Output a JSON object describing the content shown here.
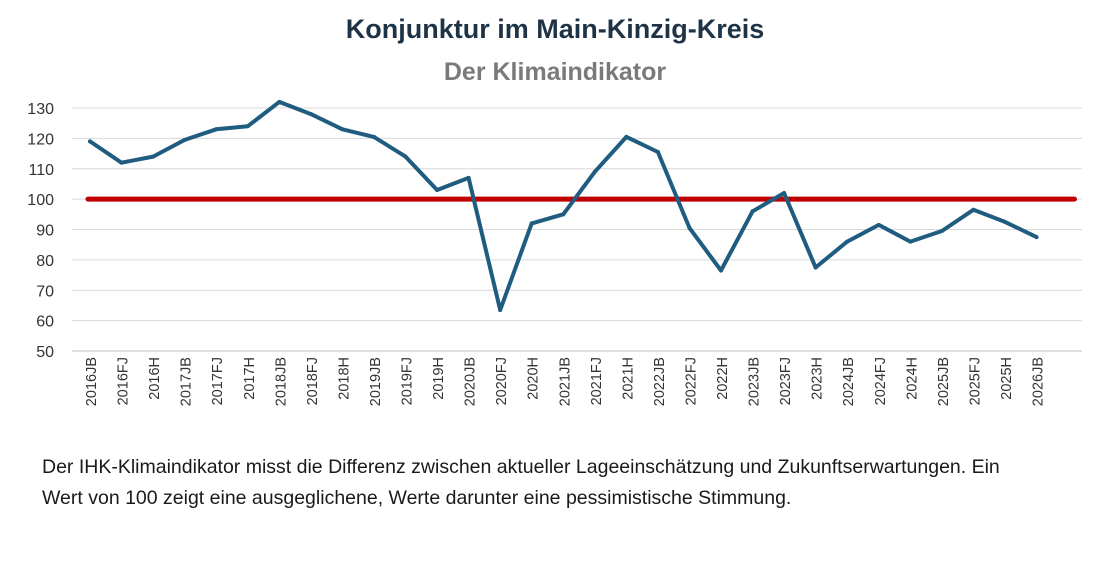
{
  "chart_data": {
    "type": "line",
    "title": "Konjunktur im Main-Kinzig-Kreis",
    "subtitle": "Der Klimaindikator",
    "xlabel": "",
    "ylabel": "",
    "ylim": [
      50,
      130
    ],
    "yticks": [
      50,
      60,
      70,
      80,
      90,
      100,
      110,
      120,
      130
    ],
    "grid": true,
    "legend": "none",
    "categories": [
      "2016JB",
      "2016FJ",
      "2016H",
      "2017JB",
      "2017FJ",
      "2017H",
      "2018JB",
      "2018FJ",
      "2018H",
      "2019JB",
      "2019FJ",
      "2019H",
      "2020JB",
      "2020FJ",
      "2020H",
      "2021JB",
      "2021FJ",
      "2021H",
      "2022JB",
      "2022FJ",
      "2022H",
      "2023JB",
      "2023FJ",
      "2023H",
      "2024JB",
      "2024FJ",
      "2024H",
      "2025JB",
      "2025FJ",
      "2025H",
      "2026JB"
    ],
    "series": [
      {
        "name": "",
        "color": "#1f5c80",
        "values": [
          119,
          112,
          114,
          119.5,
          123,
          124,
          132,
          128,
          123,
          120.5,
          114,
          103,
          107,
          63.5,
          92,
          95,
          109,
          120.5,
          115.5,
          90.5,
          76.5,
          96,
          102,
          77.5,
          86,
          91.5,
          86,
          89.5,
          96.5,
          92.5,
          87.5
        ]
      }
    ],
    "reference_line": {
      "value": 100,
      "color": "#c00000"
    }
  },
  "caption": "Der IHK-Klimaindikator misst die Differenz zwischen aktueller Lageeinschätzung und Zukunftserwartungen. Ein Wert von 100 zeigt eine ausgeglichene, Werte darunter eine pessimistische Stimmung."
}
